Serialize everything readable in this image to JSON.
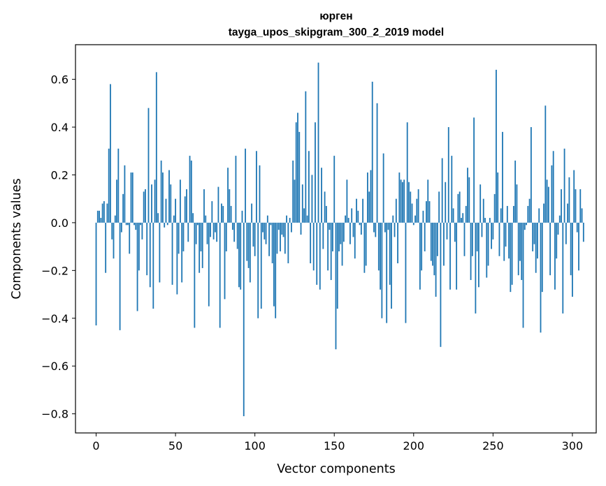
{
  "chart_data": {
    "type": "bar",
    "title": "юрген",
    "subtitle": "tayga_upos_skipgram_300_2_2019 model",
    "xlabel": "Vector components",
    "ylabel": "Components values",
    "xlim": [
      -13,
      315
    ],
    "ylim": [
      -0.88,
      0.745
    ],
    "xticks": [
      0,
      50,
      100,
      150,
      200,
      250,
      300
    ],
    "xtick_labels": [
      "0",
      "50",
      "100",
      "150",
      "200",
      "250",
      "300"
    ],
    "yticks": [
      -0.8,
      -0.6,
      -0.4,
      -0.2,
      0.0,
      0.2,
      0.4,
      0.6
    ],
    "ytick_labels": [
      "−0.8",
      "−0.6",
      "−0.4",
      "−0.2",
      "0.0",
      "0.2",
      "0.4",
      "0.6"
    ],
    "bar_color": "#1f77b4",
    "values": [
      -0.43,
      0.05,
      0.05,
      0.02,
      0.08,
      0.09,
      -0.21,
      0.08,
      0.31,
      0.58,
      -0.07,
      -0.15,
      0.03,
      0.18,
      0.31,
      -0.45,
      -0.04,
      0.12,
      0.24,
      -0.01,
      -0.01,
      -0.13,
      0.21,
      0.21,
      -0.01,
      -0.03,
      -0.37,
      -0.2,
      -0.01,
      -0.07,
      0.13,
      0.14,
      -0.22,
      0.48,
      -0.27,
      0.16,
      -0.36,
      0.18,
      0.63,
      0.04,
      -0.25,
      0.26,
      0.21,
      -0.02,
      0.1,
      -0.01,
      0.22,
      0.16,
      -0.26,
      0.03,
      0.1,
      -0.3,
      -0.13,
      0.18,
      -0.25,
      -0.12,
      0.11,
      0.14,
      -0.08,
      0.28,
      0.26,
      0.04,
      -0.44,
      -0.09,
      -0.01,
      -0.21,
      -0.12,
      -0.19,
      0.14,
      0.03,
      -0.09,
      -0.35,
      -0.06,
      0.09,
      -0.07,
      -0.04,
      -0.08,
      0.15,
      -0.44,
      0.08,
      0.07,
      -0.32,
      -0.12,
      0.23,
      0.14,
      0.07,
      -0.03,
      -0.08,
      0.28,
      -0.11,
      -0.27,
      -0.28,
      0.05,
      -0.81,
      0.31,
      -0.16,
      -0.19,
      -0.25,
      0.08,
      -0.1,
      -0.14,
      0.3,
      -0.4,
      0.24,
      -0.36,
      -0.04,
      -0.07,
      -0.09,
      0.03,
      -0.14,
      -0.01,
      -0.17,
      -0.35,
      -0.4,
      -0.13,
      -0.03,
      -0.12,
      -0.05,
      -0.06,
      -0.13,
      0.03,
      -0.17,
      0.02,
      -0.04,
      0.26,
      0.18,
      0.42,
      0.46,
      0.38,
      -0.05,
      0.16,
      0.06,
      0.55,
      0.03,
      0.3,
      -0.17,
      0.2,
      -0.2,
      0.42,
      -0.26,
      0.67,
      -0.28,
      0.23,
      -0.11,
      0.13,
      0.07,
      -0.2,
      -0.03,
      -0.24,
      -0.12,
      0.28,
      -0.53,
      -0.36,
      -0.12,
      -0.09,
      -0.18,
      -0.08,
      0.03,
      0.18,
      0.02,
      -0.09,
      0.06,
      -0.06,
      -0.15,
      0.1,
      0.05,
      -0.01,
      -0.05,
      0.1,
      -0.21,
      -0.18,
      0.21,
      0.13,
      0.22,
      0.59,
      -0.04,
      -0.06,
      0.5,
      -0.2,
      -0.28,
      -0.4,
      0.29,
      -0.04,
      -0.42,
      -0.03,
      -0.26,
      -0.36,
      0.03,
      -0.06,
      0.1,
      -0.17,
      0.21,
      0.18,
      0.17,
      0.18,
      -0.42,
      0.42,
      0.17,
      0.13,
      0.08,
      -0.01,
      0.03,
      0.1,
      0.14,
      -0.28,
      -0.2,
      0.05,
      -0.12,
      0.09,
      0.18,
      0.09,
      -0.16,
      -0.18,
      -0.22,
      -0.31,
      -0.14,
      0.13,
      -0.52,
      0.27,
      -0.18,
      0.17,
      -0.07,
      0.4,
      -0.28,
      0.28,
      0.06,
      -0.08,
      -0.28,
      0.12,
      0.13,
      0.02,
      0.04,
      -0.14,
      0.07,
      0.23,
      0.19,
      -0.24,
      -0.14,
      0.44,
      -0.38,
      -0.12,
      -0.27,
      0.16,
      -0.06,
      0.1,
      0.02,
      -0.23,
      -0.18,
      0.02,
      -0.11,
      -0.07,
      0.12,
      0.64,
      0.21,
      -0.14,
      0.06,
      0.38,
      -0.16,
      -0.1,
      0.07,
      -0.15,
      -0.29,
      -0.26,
      0.07,
      0.26,
      0.16,
      -0.22,
      -0.16,
      -0.24,
      -0.44,
      -0.03,
      -0.01,
      0.07,
      0.1,
      0.4,
      -0.12,
      -0.09,
      -0.21,
      -0.15,
      0.06,
      -0.46,
      -0.29,
      0.08,
      0.49,
      0.18,
      0.15,
      -0.22,
      0.24,
      0.3,
      -0.28,
      -0.15,
      -0.05,
      0.03,
      0.14,
      -0.38,
      0.31,
      -0.09,
      0.08,
      0.19,
      -0.22,
      -0.31,
      0.22,
      0.14,
      -0.04,
      -0.2,
      0.14,
      0.06,
      -0.08
    ]
  }
}
